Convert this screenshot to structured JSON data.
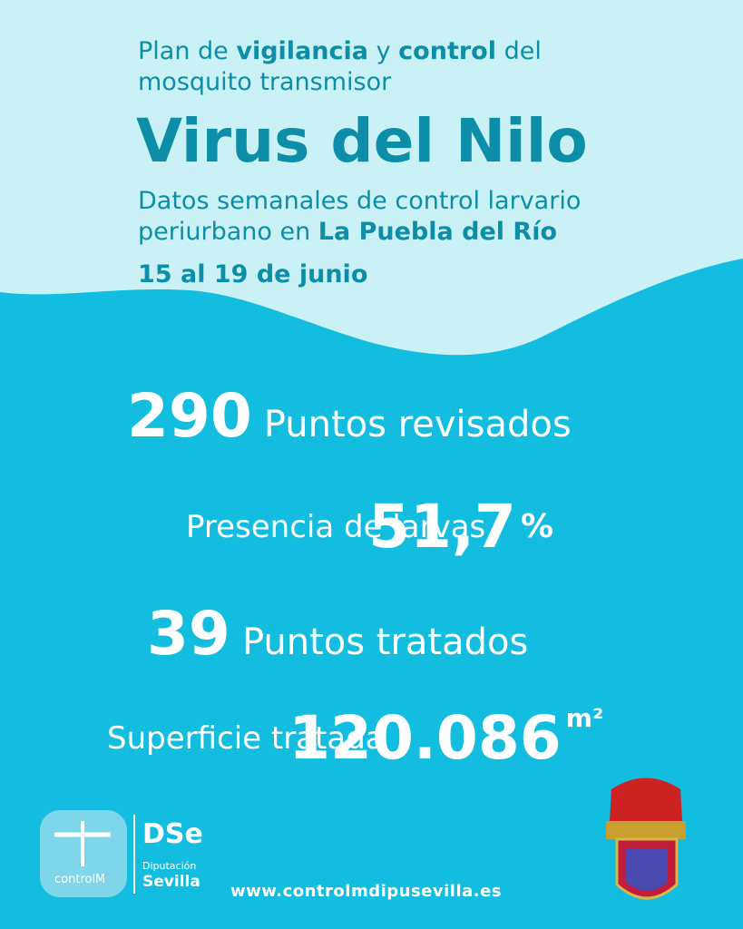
{
  "header": {
    "intro": [
      "Plan de",
      "vigilancia",
      "y",
      "control",
      "del",
      "mosquito transmisor"
    ],
    "title": "Virus del Nilo",
    "subtitle": [
      "Datos semanales de control larvario",
      "periurbano en",
      "La Puebla del Río"
    ],
    "date": "15 al 19 de junio"
  },
  "stats": [
    {
      "value": "290",
      "label": "Puntos revisados"
    },
    {
      "label": "Presencia de larvas",
      "value": "51,7",
      "unit": "%"
    },
    {
      "value": "39",
      "label": "Puntos tratados"
    },
    {
      "label": "Superficie tratada",
      "value": "120.086",
      "unit": "m²"
    }
  ],
  "footer": {
    "logos": [
      "controlM",
      "DSe",
      "Diputación",
      "Sevilla"
    ],
    "url": "www.controlmdipusevilla.es"
  }
}
